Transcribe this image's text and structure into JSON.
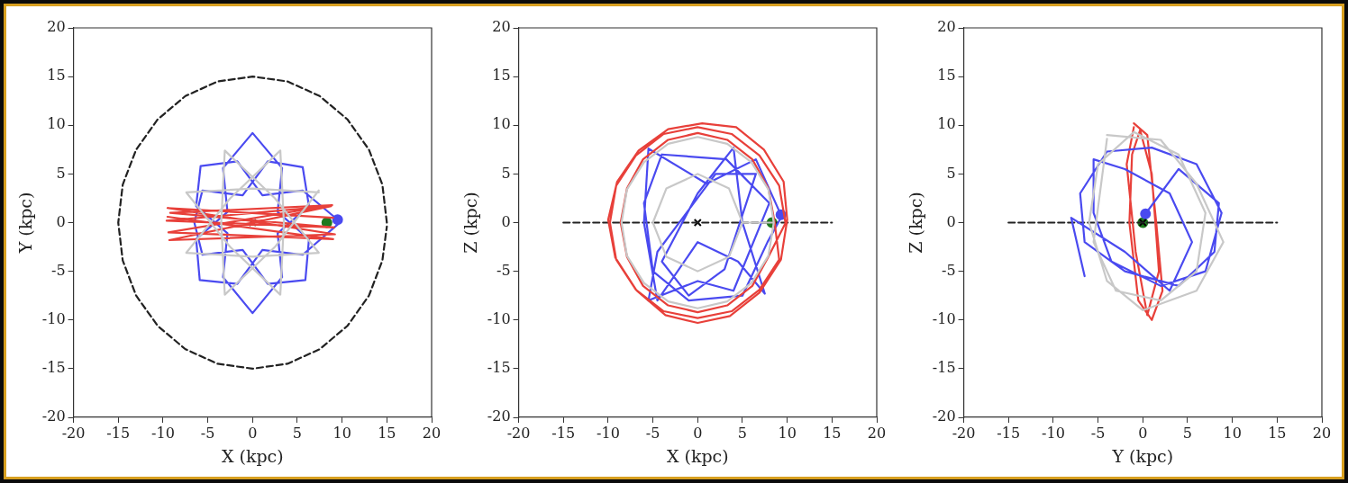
{
  "chart_data": [
    {
      "type": "line",
      "xlabel": "X (kpc)",
      "ylabel": "Y (kpc)",
      "xlim": [
        -20,
        20
      ],
      "ylim": [
        -20,
        20
      ],
      "xticks": [
        -20,
        -15,
        -10,
        -5,
        0,
        5,
        10,
        15,
        20
      ],
      "yticks": [
        -20,
        -15,
        -10,
        -5,
        0,
        5,
        10,
        15,
        20
      ],
      "series": [
        {
          "type": "line",
          "marker": "none",
          "color": "#c8c8c8",
          "x": [
            7.4,
            0,
            -7.4,
            -2.5,
            3.1,
            3.5,
            3.1,
            -2.5,
            -7.4,
            0,
            7.4,
            2.5,
            -3.1,
            -3.5,
            -3.1,
            2.5,
            7.4
          ],
          "values": [
            3.1,
            3.5,
            3.1,
            -2.5,
            -7.4,
            0,
            7.4,
            2.5,
            -3.1,
            -3.5,
            -3.1,
            2.5,
            7.4,
            0,
            -7.4,
            -2.5,
            3.3
          ]
        },
        {
          "type": "line",
          "marker": "none",
          "color": "#e8403a",
          "x": [
            9,
            -9.5,
            9.2,
            -9.3,
            8.8,
            -9.6,
            9.1,
            -9.2,
            8.9,
            -9.4,
            9,
            -9.5
          ],
          "values": [
            0.5,
            1.5,
            -1.2,
            -1.8,
            1.7,
            0.2,
            -0.5,
            1,
            1.8,
            -1,
            -1.7,
            0.6
          ]
        },
        {
          "type": "line",
          "marker": "none",
          "color": "#4a4af0",
          "x": [
            9.5,
            5.6,
            1.1,
            -1.7,
            -5.8,
            -6.3,
            -2.8,
            -3.3,
            0,
            3.3,
            2.8,
            6.3,
            5.6,
            1.7,
            -1.1,
            -5.6,
            -6.5,
            -5.6,
            -1.1,
            1.7,
            5.9,
            6.3,
            2.8,
            3.3,
            0,
            -3.3,
            -2.8,
            -6.3,
            -5.9,
            -1.7,
            1.1,
            5.6,
            9.5
          ],
          "values": [
            0.3,
            3.3,
            2.8,
            6.3,
            5.8,
            1.7,
            -1.1,
            -5.6,
            -9.3,
            -5.6,
            -1.1,
            1.7,
            5.7,
            6.3,
            2.8,
            3.3,
            0,
            -3.3,
            -2.8,
            -6.3,
            -5.9,
            -1.7,
            1.1,
            5.6,
            9.2,
            5.6,
            1.1,
            -1.7,
            -5.9,
            -6.3,
            -2.8,
            -3.3,
            -0.2
          ]
        },
        {
          "type": "line",
          "marker": "none",
          "line_style": "dashed",
          "color": "#222222",
          "x": [
            15,
            14.5,
            13,
            10.6,
            7.5,
            3.9,
            0,
            -3.9,
            -7.5,
            -10.6,
            -13,
            -14.5,
            -15,
            -14.5,
            -13,
            -10.6,
            -7.5,
            -3.9,
            0,
            3.9,
            7.5,
            10.6,
            13,
            14.5,
            15
          ],
          "values": [
            0,
            3.9,
            7.5,
            10.6,
            13,
            14.5,
            15,
            14.5,
            13,
            10.6,
            7.5,
            3.9,
            0,
            -3.9,
            -7.5,
            -10.6,
            -13,
            -14.5,
            -15,
            -14.5,
            -13,
            -10.6,
            -7.5,
            -3.9,
            -0.4
          ]
        },
        {
          "type": "scatter",
          "marker": "cross",
          "color": "#000000",
          "x": [
            0
          ],
          "values": [
            0
          ]
        },
        {
          "type": "scatter",
          "marker": "circle",
          "color": "#4a4af0",
          "x": [
            9.5
          ],
          "values": [
            0.3
          ]
        },
        {
          "type": "scatter",
          "marker": "circle",
          "color": "#1e7a1e",
          "x": [
            8.3
          ],
          "values": [
            0
          ]
        }
      ]
    },
    {
      "type": "line",
      "xlabel": "X (kpc)",
      "ylabel": "Z (kpc)",
      "xlim": [
        -20,
        20
      ],
      "ylim": [
        -20,
        20
      ],
      "xticks": [
        -20,
        -15,
        -10,
        -5,
        0,
        5,
        10,
        15,
        20
      ],
      "yticks": [
        -20,
        -15,
        -10,
        -5,
        0,
        5,
        10,
        15,
        20
      ],
      "series": [
        {
          "type": "line",
          "marker": "none",
          "color": "#c8c8c8",
          "x": [
            8.5,
            7.9,
            6,
            3.3,
            0,
            -3.3,
            -6,
            -7.9,
            -8.5,
            -7.9,
            -6,
            -3.3,
            0,
            3.3,
            6,
            7.9,
            8.5,
            5,
            3.5,
            0,
            -3.5,
            -5,
            -3.5,
            0,
            3.5,
            5
          ],
          "values": [
            0,
            3.4,
            6.2,
            8.1,
            8.8,
            8.1,
            6.2,
            3.4,
            0,
            -3.4,
            -6.2,
            -8.1,
            -8.8,
            -8.1,
            -6.2,
            -3.4,
            0,
            0,
            3.5,
            5,
            3.5,
            0,
            -3.5,
            -5,
            -3.5,
            0
          ]
        },
        {
          "type": "line",
          "marker": "none",
          "color": "#e8403a",
          "x": [
            9.8,
            9.1,
            6.9,
            3.8,
            0,
            -3.8,
            -6.9,
            -9.1,
            -9.8,
            -9.1,
            -6.9,
            -3.8,
            0,
            3.8,
            6.9,
            9.1,
            8.6,
            7.9,
            6.1,
            3.3,
            0,
            -3.3,
            -6.1,
            -7.9,
            -8.6,
            -7.9,
            -6.1,
            -3.3,
            0,
            3.3,
            6.1,
            7.9,
            10,
            9.6,
            7.4,
            4.3,
            0.5,
            -3.3,
            -6.6,
            -9,
            -10,
            -9.2,
            -6.8,
            -3.6,
            0,
            3.6,
            6.9,
            9.3,
            10
          ],
          "values": [
            0,
            3.8,
            6.9,
            9.1,
            9.8,
            9.1,
            6.9,
            3.8,
            0,
            -3.8,
            -6.9,
            -9.1,
            -9.8,
            -9.1,
            -6.9,
            -3.8,
            0,
            3.5,
            6.5,
            8.5,
            9.2,
            8.5,
            6.5,
            3.5,
            0,
            -3.5,
            -6.5,
            -8.5,
            -9.2,
            -8.5,
            -6.5,
            -3.5,
            0.3,
            4.2,
            7.5,
            9.8,
            10.2,
            9.6,
            7.4,
            4.2,
            0.3,
            -3.6,
            -7,
            -9.5,
            -10.3,
            -9.6,
            -7.2,
            -3.8,
            0.3
          ]
        },
        {
          "type": "line",
          "marker": "none",
          "color": "#4a4af0",
          "x": [
            9.3,
            6.5,
            1,
            -5.5,
            -6,
            -4.5,
            0,
            4.5,
            7.5,
            5,
            4,
            0,
            -4,
            -1,
            3,
            6.5,
            2,
            -4.5,
            -5.5,
            0,
            4,
            8,
            3.2,
            -4,
            -6,
            -5,
            -1,
            5,
            7.8,
            9.3
          ],
          "values": [
            0.8,
            6.5,
            4,
            7.6,
            0,
            -8,
            -2,
            -4,
            -7.3,
            0,
            7.7,
            3,
            -4,
            -7.5,
            -4.8,
            5,
            5,
            -3,
            -8,
            -6,
            -7,
            2,
            6.5,
            7,
            2,
            -5,
            -8,
            -7.5,
            -2,
            0.5
          ]
        },
        {
          "type": "line",
          "marker": "none",
          "line_style": "dashed",
          "color": "#222222",
          "x": [
            -15,
            15
          ],
          "values": [
            0,
            0
          ]
        },
        {
          "type": "scatter",
          "marker": "cross",
          "color": "#000000",
          "x": [
            0
          ],
          "values": [
            0
          ]
        },
        {
          "type": "scatter",
          "marker": "circle",
          "color": "#4a4af0",
          "x": [
            9.3
          ],
          "values": [
            0.8
          ]
        },
        {
          "type": "scatter",
          "marker": "circle",
          "color": "#1e7a1e",
          "x": [
            8.3
          ],
          "values": [
            0
          ]
        }
      ]
    },
    {
      "type": "line",
      "xlabel": "Y (kpc)",
      "ylabel": "Z (kpc)",
      "xlim": [
        -20,
        20
      ],
      "ylim": [
        -20,
        20
      ],
      "xticks": [
        -20,
        -15,
        -10,
        -5,
        0,
        5,
        10,
        15,
        20
      ],
      "yticks": [
        -20,
        -15,
        -10,
        -5,
        0,
        5,
        10,
        15,
        20
      ],
      "series": [
        {
          "type": "line",
          "marker": "none",
          "color": "#c8c8c8",
          "x": [
            -4,
            2,
            6,
            9,
            6,
            0,
            -4,
            -6,
            -5,
            -1,
            4,
            7,
            6,
            2,
            -3,
            -5.5,
            -4
          ],
          "values": [
            9,
            8.5,
            4,
            -2,
            -7,
            -9,
            -6,
            0,
            6,
            9.3,
            7,
            1,
            -5,
            -8,
            -7,
            -2,
            8.6
          ]
        },
        {
          "type": "line",
          "marker": "none",
          "color": "#4a4af0",
          "x": [
            0.3,
            4,
            8.5,
            8,
            4,
            -2,
            -6.5,
            -7,
            -4,
            1,
            6,
            8.8,
            7,
            2,
            -3.5,
            -5.5,
            -5.5,
            -2,
            3,
            5.5,
            3,
            -2,
            -8,
            -6.5
          ],
          "values": [
            0.9,
            5.5,
            2,
            -3,
            -6.5,
            -5,
            -2,
            3,
            7.3,
            7.7,
            6,
            1,
            -5,
            -6.5,
            -4,
            1,
            6.5,
            5.5,
            3,
            -2,
            -7,
            -3,
            0.5,
            -5.5
          ]
        },
        {
          "type": "line",
          "marker": "none",
          "color": "#e8403a",
          "x": [
            -1,
            0.5,
            1.5,
            2.2,
            1,
            -0.5,
            -1.5,
            -1.2,
            -0.3,
            1,
            1.8,
            0.5,
            -0.8,
            -1.8,
            -1
          ],
          "values": [
            10.2,
            9,
            0,
            -7,
            -10,
            -8,
            0,
            7,
            9.5,
            5,
            -5,
            -9.5,
            -3,
            6,
            9.8
          ]
        },
        {
          "type": "line",
          "marker": "none",
          "line_style": "dashed",
          "color": "#222222",
          "x": [
            -15,
            15
          ],
          "values": [
            0,
            0
          ]
        },
        {
          "type": "scatter",
          "marker": "cross",
          "color": "#000000",
          "x": [
            0
          ],
          "values": [
            0
          ]
        },
        {
          "type": "scatter",
          "marker": "circle",
          "color": "#4a4af0",
          "x": [
            0.3
          ],
          "values": [
            0.9
          ]
        },
        {
          "type": "scatter",
          "marker": "circle",
          "color": "#1e7a1e",
          "x": [
            0
          ],
          "values": [
            0
          ]
        }
      ]
    }
  ]
}
